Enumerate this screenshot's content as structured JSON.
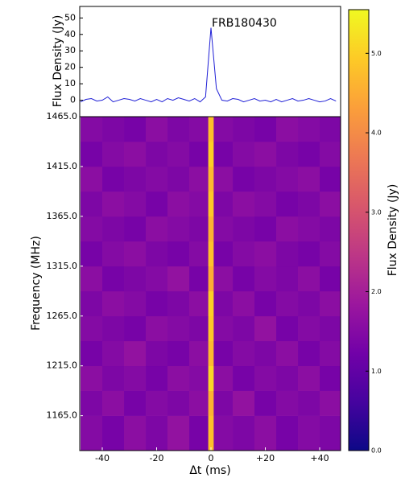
{
  "chart_data": [
    {
      "type": "line",
      "annotation": "FRB180430",
      "ylabel": "Flux Density (Jy)",
      "x": [
        -48,
        -46,
        -44,
        -42,
        -40,
        -38,
        -36,
        -34,
        -32,
        -30,
        -28,
        -26,
        -24,
        -22,
        -20,
        -18,
        -16,
        -14,
        -12,
        -10,
        -8,
        -6,
        -4,
        -2,
        0,
        2,
        4,
        6,
        8,
        10,
        12,
        14,
        16,
        18,
        20,
        22,
        24,
        26,
        28,
        30,
        32,
        34,
        36,
        38,
        40,
        42,
        44,
        46
      ],
      "series": [
        {
          "color": "#1f1fd6",
          "values": [
            -1,
            0.5,
            1,
            -0.5,
            0,
            2,
            -1,
            0,
            1,
            0.5,
            -0.5,
            1,
            0,
            -1,
            0.5,
            -1,
            1,
            0,
            1.5,
            0.5,
            -0.5,
            1,
            -1,
            2,
            44,
            7,
            0,
            -0.5,
            1,
            0.5,
            -1,
            0,
            1,
            -0.5,
            0,
            -1,
            0.5,
            -1,
            0,
            1,
            -0.5,
            0,
            1,
            0,
            -1,
            -0.5,
            1,
            -0.5
          ]
        }
      ],
      "xlim": [
        -48.3,
        47.7
      ],
      "ylim": [
        -10,
        57
      ],
      "yticks": [
        0,
        10,
        20,
        30,
        40,
        50
      ]
    },
    {
      "type": "heatmap",
      "xlabel": "Δt (ms)",
      "ylabel": "Frequency (MHz)",
      "x": [
        -48,
        -40,
        -32,
        -24,
        -16,
        -8,
        -1,
        1,
        8,
        16,
        24,
        32,
        40,
        48
      ],
      "y": [
        1130,
        1165,
        1190,
        1215,
        1240,
        1265,
        1290,
        1315,
        1340,
        1365,
        1390,
        1415,
        1440,
        1465
      ],
      "values": [
        [
          1.5,
          1.3,
          1.6,
          1.4,
          1.7,
          1.3,
          4.8,
          1.5,
          1.4,
          1.6,
          1.3,
          1.5,
          1.4
        ],
        [
          1.4,
          1.6,
          1.3,
          1.5,
          1.4,
          1.6,
          4.6,
          1.4,
          1.7,
          1.3,
          1.5,
          1.4,
          1.6
        ],
        [
          1.6,
          1.4,
          1.5,
          1.3,
          1.6,
          1.5,
          5.1,
          1.6,
          1.3,
          1.5,
          1.4,
          1.6,
          1.3
        ],
        [
          1.3,
          1.5,
          1.7,
          1.4,
          1.3,
          1.6,
          4.7,
          1.3,
          1.5,
          1.4,
          1.6,
          1.3,
          1.5
        ],
        [
          1.5,
          1.4,
          1.3,
          1.6,
          1.5,
          1.4,
          4.9,
          1.5,
          1.4,
          1.7,
          1.3,
          1.5,
          1.4
        ],
        [
          1.4,
          1.6,
          1.5,
          1.3,
          1.4,
          1.6,
          5.0,
          1.4,
          1.6,
          1.3,
          1.5,
          1.4,
          1.6
        ],
        [
          1.6,
          1.3,
          1.4,
          1.5,
          1.7,
          1.3,
          4.5,
          1.6,
          1.3,
          1.5,
          1.4,
          1.6,
          1.3
        ],
        [
          1.3,
          1.5,
          1.6,
          1.4,
          1.3,
          1.5,
          4.8,
          1.3,
          1.5,
          1.6,
          1.4,
          1.3,
          1.5
        ],
        [
          1.5,
          1.4,
          1.3,
          1.6,
          1.5,
          1.4,
          4.6,
          1.5,
          1.4,
          1.3,
          1.6,
          1.5,
          1.4
        ],
        [
          1.4,
          1.6,
          1.5,
          1.3,
          1.6,
          1.5,
          4.9,
          1.4,
          1.6,
          1.5,
          1.3,
          1.4,
          1.6
        ],
        [
          1.6,
          1.3,
          1.4,
          1.5,
          1.4,
          1.6,
          4.7,
          1.6,
          1.3,
          1.4,
          1.5,
          1.6,
          1.3
        ],
        [
          1.3,
          1.5,
          1.6,
          1.4,
          1.5,
          1.3,
          5.0,
          1.3,
          1.5,
          1.6,
          1.4,
          1.3,
          1.5
        ],
        [
          1.5,
          1.4,
          1.3,
          1.6,
          1.4,
          1.5,
          4.8,
          1.5,
          1.4,
          1.3,
          1.6,
          1.5,
          1.4
        ]
      ],
      "xlim": [
        -48.3,
        47.7
      ],
      "ylim": [
        1130,
        1465
      ],
      "xticks": [
        -40,
        -20,
        0,
        {
          "value": 20,
          "label": "+20"
        },
        {
          "value": 40,
          "label": "+40"
        }
      ],
      "yticks": [
        {
          "value": 1465,
          "label": "1465.0"
        },
        {
          "value": 1415,
          "label": "1415.0"
        },
        {
          "value": 1365,
          "label": "1365.0"
        },
        {
          "value": 1315,
          "label": "1315.0"
        },
        {
          "value": 1265,
          "label": "1265.0"
        },
        {
          "value": 1215,
          "label": "1215.0"
        },
        {
          "value": 1165,
          "label": "1165.0"
        }
      ],
      "colormap": [
        "#0d0887",
        "#46039f",
        "#7201a8",
        "#9c179e",
        "#bd3786",
        "#d8576b",
        "#ed7953",
        "#fb9f3a",
        "#fdca26",
        "#f0f921"
      ],
      "colorbar": {
        "label": "Flux Density (Jy)",
        "lim": [
          0,
          5.55
        ],
        "ticks": [
          {
            "value": 0,
            "label": "0.0"
          },
          {
            "value": 1,
            "label": "1.0"
          },
          {
            "value": 2,
            "label": "2.0"
          },
          {
            "value": 3,
            "label": "3.0"
          },
          {
            "value": 4,
            "label": "4.0"
          },
          {
            "value": 5,
            "label": "5.0"
          }
        ]
      }
    }
  ]
}
